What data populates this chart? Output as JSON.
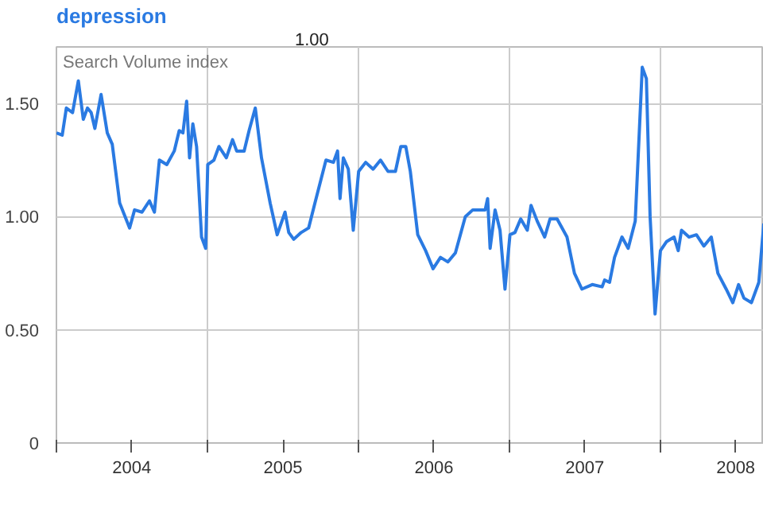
{
  "chart_data": {
    "type": "line",
    "ylabel": "Search Volume index",
    "annotations": [
      "1.00"
    ],
    "grid": true,
    "marker": "none",
    "line_style": "solid",
    "xlim": [
      "2004-01-01",
      "2008-09-07"
    ],
    "ylim": [
      0,
      1.75
    ],
    "yticks": [
      0,
      {
        "value": 0.5,
        "label": "0.50"
      },
      {
        "value": 1,
        "label": "1.00"
      },
      {
        "value": 1.5,
        "label": "1.50"
      }
    ],
    "xticks": [
      {
        "value": "2004-01-01",
        "label": null
      },
      {
        "value": "2004-07-01",
        "label": "2004"
      },
      {
        "value": "2005-01-01",
        "label": null
      },
      {
        "value": "2005-07-02",
        "label": "2005"
      },
      {
        "value": "2006-01-01",
        "label": null
      },
      {
        "value": "2006-07-02",
        "label": "2006"
      },
      {
        "value": "2007-01-01",
        "label": null
      },
      {
        "value": "2007-07-02",
        "label": "2007"
      },
      {
        "value": "2008-01-01",
        "label": null
      },
      {
        "value": "2008-07-01",
        "label": "2008"
      }
    ],
    "x": [
      "2004-01-01",
      "2004-01-15",
      "2004-01-25",
      "2004-02-09",
      "2004-02-23",
      "2004-03-06",
      "2004-03-16",
      "2004-03-25",
      "2004-04-03",
      "2004-04-18",
      "2004-05-03",
      "2004-05-15",
      "2004-06-02",
      "2004-06-26",
      "2004-07-08",
      "2004-07-26",
      "2004-08-13",
      "2004-08-25",
      "2004-09-06",
      "2004-09-24",
      "2004-10-12",
      "2004-10-24",
      "2004-11-02",
      "2004-11-11",
      "2004-11-18",
      "2004-11-26",
      "2004-12-05",
      "2004-12-17",
      "2004-12-27",
      "2005-01-01",
      "2005-01-16",
      "2005-01-28",
      "2005-02-15",
      "2005-03-02",
      "2005-03-12",
      "2005-03-30",
      "2005-04-11",
      "2005-04-26",
      "2005-05-11",
      "2005-06-01",
      "2005-06-18",
      "2005-07-07",
      "2005-07-16",
      "2005-07-28",
      "2005-08-15",
      "2005-09-02",
      "2005-09-20",
      "2005-10-14",
      "2005-11-01",
      "2005-11-11",
      "2005-11-17",
      "2005-11-25",
      "2005-12-07",
      "2005-12-19",
      "2006-01-01",
      "2006-01-18",
      "2006-02-05",
      "2006-02-23",
      "2006-03-13",
      "2006-03-31",
      "2006-04-13",
      "2006-04-25",
      "2006-05-06",
      "2006-05-24",
      "2006-06-12",
      "2006-06-30",
      "2006-07-18",
      "2006-08-05",
      "2006-08-23",
      "2006-09-16",
      "2006-10-04",
      "2006-11-03",
      "2006-11-09",
      "2006-11-15",
      "2006-11-27",
      "2006-12-09",
      "2006-12-21",
      "2007-01-02",
      "2007-01-14",
      "2007-01-28",
      "2007-02-13",
      "2007-02-22",
      "2007-03-09",
      "2007-03-27",
      "2007-04-09",
      "2007-04-26",
      "2007-05-20",
      "2007-06-07",
      "2007-06-25",
      "2007-07-20",
      "2007-08-13",
      "2007-08-19",
      "2007-08-31",
      "2007-09-12",
      "2007-09-30",
      "2007-10-15",
      "2007-11-01",
      "2007-11-11",
      "2007-11-18",
      "2007-11-28",
      "2007-12-07",
      "2007-12-19",
      "2008-01-01",
      "2008-01-16",
      "2008-02-03",
      "2008-02-13",
      "2008-02-21",
      "2008-03-10",
      "2008-03-28",
      "2008-04-15",
      "2008-05-03",
      "2008-05-19",
      "2008-06-08",
      "2008-06-24",
      "2008-07-08",
      "2008-07-21",
      "2008-08-08",
      "2008-08-26",
      "2008-09-07"
    ],
    "series": [
      {
        "name": "depression",
        "color": "#2a7ae2",
        "values": [
          1.37,
          1.36,
          1.48,
          1.46,
          1.6,
          1.43,
          1.48,
          1.46,
          1.39,
          1.54,
          1.37,
          1.32,
          1.06,
          0.95,
          1.03,
          1.02,
          1.07,
          1.02,
          1.25,
          1.23,
          1.29,
          1.38,
          1.37,
          1.51,
          1.26,
          1.41,
          1.31,
          0.91,
          0.86,
          1.23,
          1.25,
          1.31,
          1.26,
          1.34,
          1.29,
          1.29,
          1.38,
          1.48,
          1.26,
          1.06,
          0.92,
          1.02,
          0.93,
          0.9,
          0.93,
          0.95,
          1.08,
          1.25,
          1.24,
          1.29,
          1.08,
          1.26,
          1.21,
          0.94,
          1.2,
          1.24,
          1.21,
          1.25,
          1.2,
          1.2,
          1.31,
          1.31,
          1.2,
          0.92,
          0.85,
          0.77,
          0.82,
          0.8,
          0.84,
          1.0,
          1.03,
          1.03,
          1.08,
          0.86,
          1.03,
          0.94,
          0.68,
          0.92,
          0.93,
          0.99,
          0.94,
          1.05,
          0.98,
          0.91,
          0.99,
          0.99,
          0.91,
          0.75,
          0.68,
          0.7,
          0.69,
          0.72,
          0.71,
          0.82,
          0.91,
          0.86,
          0.98,
          1.38,
          1.66,
          1.61,
          1.0,
          0.57,
          0.85,
          0.89,
          0.91,
          0.85,
          0.94,
          0.91,
          0.92,
          0.87,
          0.91,
          0.75,
          0.68,
          0.62,
          0.7,
          0.64,
          0.62,
          0.71,
          0.97
        ]
      }
    ]
  }
}
